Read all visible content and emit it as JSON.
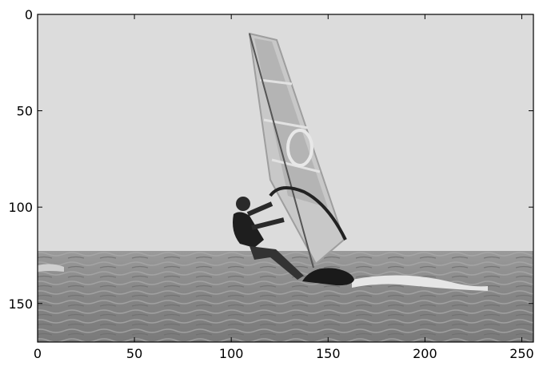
{
  "chart_data": {
    "type": "image",
    "xlim": [
      0,
      256
    ],
    "xticks": [
      0,
      50,
      100,
      150,
      200,
      250
    ],
    "ylim": [
      170,
      0
    ],
    "yticks": [
      0,
      50,
      100,
      150
    ]
  }
}
